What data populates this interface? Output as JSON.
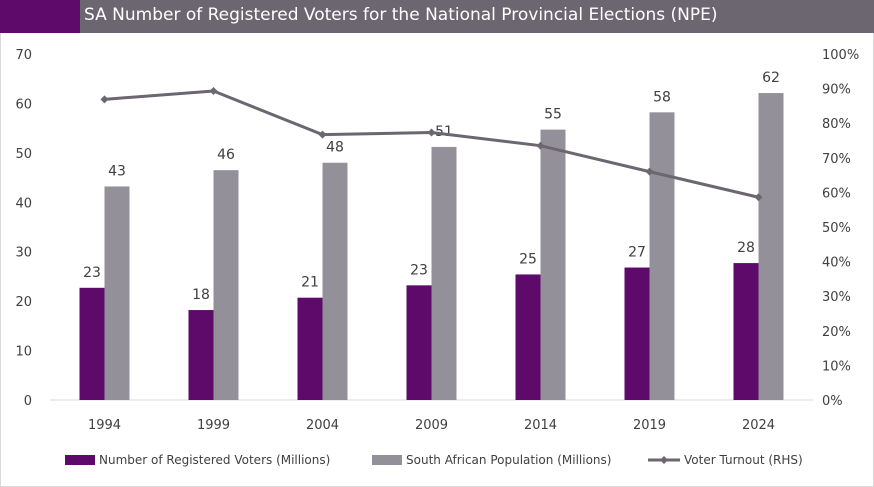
{
  "title": "SA Number of Registered Voters for the National Provincial Elections (NPE)",
  "colors": {
    "title_bg": "#6b6670",
    "title_accent": "#5e0a6b",
    "voters": "#5e0a6b",
    "population": "#94909a",
    "turnout": "#6b6670"
  },
  "chart_data": {
    "type": "bar",
    "title": "SA Number of Registered Voters for the National Provincial Elections (NPE)",
    "categories": [
      "1994",
      "1999",
      "2004",
      "2009",
      "2014",
      "2019",
      "2024"
    ],
    "ylim": [
      0,
      70
    ],
    "yticks": [
      "0",
      "10",
      "20",
      "30",
      "40",
      "50",
      "60",
      "70"
    ],
    "y2lim": [
      0,
      100
    ],
    "y2ticks": [
      "0%",
      "10%",
      "20%",
      "30%",
      "40%",
      "50%",
      "60%",
      "70%",
      "80%",
      "90%",
      "100%"
    ],
    "series": [
      {
        "name": "Number of Registered Voters (Millions)",
        "kind": "bar",
        "axis": "left",
        "values": [
          22.7,
          18.2,
          20.7,
          23.2,
          25.4,
          26.8,
          27.7
        ],
        "labels": [
          "23",
          "18",
          "21",
          "23",
          "25",
          "27",
          "28"
        ]
      },
      {
        "name": "South African Population (Millions)",
        "kind": "bar",
        "axis": "left",
        "values": [
          43.2,
          46.5,
          48.0,
          51.2,
          54.7,
          58.2,
          62.1
        ],
        "labels": [
          "43",
          "46",
          "48",
          "51",
          "55",
          "58",
          "62"
        ]
      },
      {
        "name": "Voter Turnout (RHS)",
        "kind": "line",
        "axis": "right",
        "values": [
          86.9,
          89.3,
          76.7,
          77.3,
          73.5,
          66.0,
          58.6
        ]
      }
    ],
    "legend_position": "bottom",
    "grid": false
  }
}
